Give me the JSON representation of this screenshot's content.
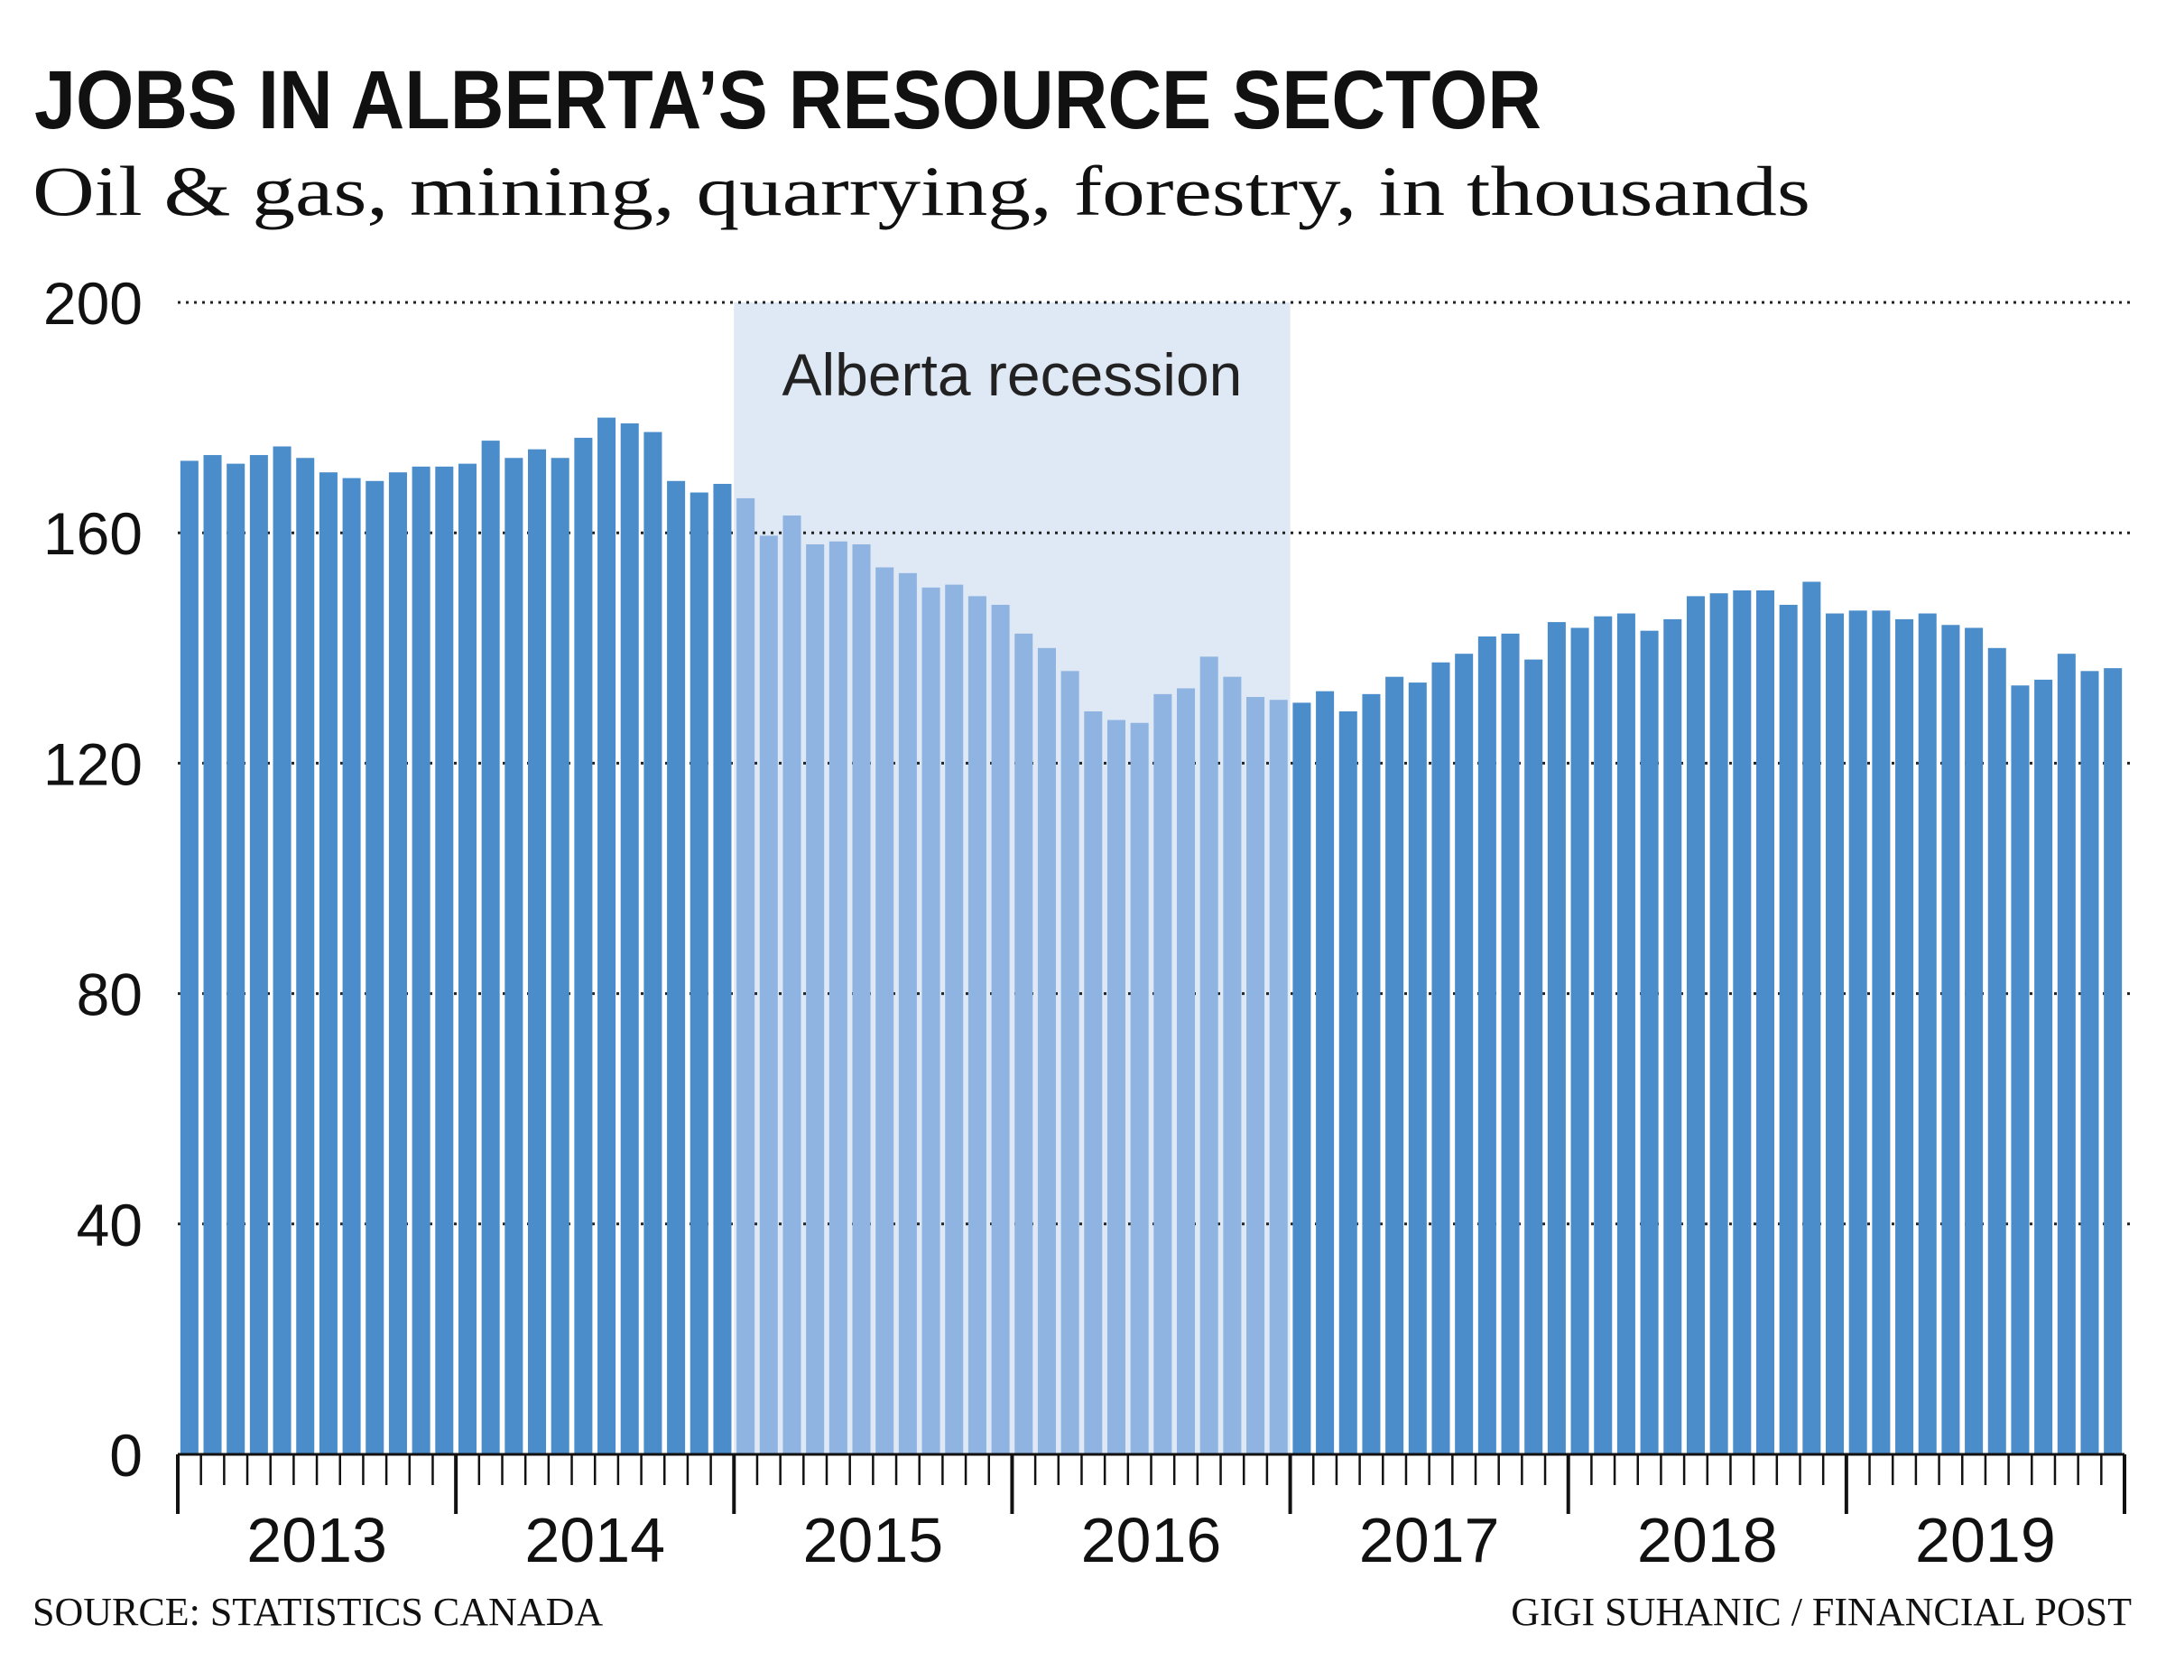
{
  "chart_data": {
    "type": "bar",
    "title": "JOBS IN ALBERTA’S RESOURCE SECTOR",
    "subtitle": "Oil & gas, mining, quarrying, forestry, in thousands",
    "year_labels": [
      "2013",
      "2014",
      "2015",
      "2016",
      "2017",
      "2018",
      "2019"
    ],
    "values": [
      172.5,
      173.5,
      172,
      173.5,
      175,
      173,
      170.5,
      169.5,
      169,
      170.5,
      171.5,
      171.5,
      172,
      176,
      173,
      174.5,
      173,
      176.5,
      180,
      179,
      177.5,
      169,
      167,
      168.5,
      166,
      159.5,
      163,
      158,
      158.5,
      158,
      154,
      153,
      150.5,
      151,
      149,
      147.5,
      142.5,
      140,
      136,
      129,
      127.5,
      127,
      132,
      133,
      138.5,
      135,
      131.5,
      131,
      130.5,
      132.5,
      129,
      132,
      135,
      134,
      137.5,
      139,
      142,
      142.5,
      138,
      144.5,
      143.5,
      145.5,
      146,
      143,
      145,
      149,
      149.5,
      150,
      150,
      147.5,
      151.5,
      146,
      146.5,
      146.5,
      145,
      146,
      144,
      143.5,
      140,
      133.5,
      134.5,
      139,
      136,
      136.5
    ],
    "color": "#4a8dca",
    "highlight": {
      "label": "Alberta recession",
      "years": [
        "2015",
        "2016"
      ],
      "color": "#8fb4e1",
      "shade": "#dfe8f5"
    },
    "ylim": [
      0,
      200
    ],
    "yticks": [
      0,
      40,
      80,
      120,
      160,
      200
    ],
    "grid": true,
    "source": "SOURCE: STATISTICS CANADA",
    "credit": "GIGI SUHANIC / FINANCIAL POST"
  }
}
